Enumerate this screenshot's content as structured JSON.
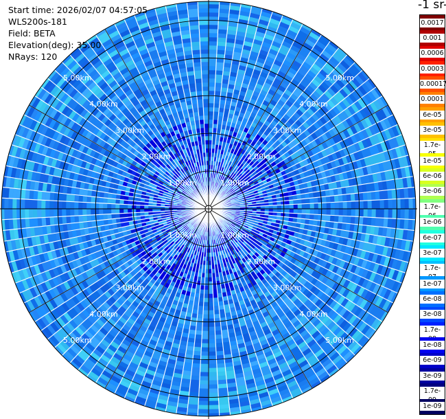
{
  "info": {
    "start_time": "Start time: 2026/02/07 04:57:05",
    "instrument": "WLS200s-181",
    "field": "Field: BETA",
    "elevation": "Elevation(deg): 35.00",
    "nrays": "NRays: 120"
  },
  "colorbar": {
    "title": "-1 sr-",
    "labels": [
      "0.0017",
      "0.001",
      "0.0006",
      "0.0003",
      "0.00017",
      "0.0001",
      "6e-05",
      "3e-05",
      "1.7e-05",
      "1e-05",
      "6e-06",
      "3e-06",
      "1.7e-06",
      "1e-06",
      "6e-07",
      "3e-07",
      "1.7e-07",
      "1e-07",
      "6e-08",
      "3e-08",
      "1.7e-08",
      "1e-08",
      "6e-09",
      "3e-09",
      "1.7e-09",
      "1e-09"
    ],
    "colors": [
      "#800000",
      "#b00000",
      "#e00000",
      "#ff2000",
      "#ff5000",
      "#ff8000",
      "#ffa000",
      "#ffc000",
      "#ffe000",
      "#f8ff00",
      "#d8ff20",
      "#b0ff50",
      "#80ff80",
      "#50ffb0",
      "#20ffe0",
      "#00e8ff",
      "#00c0ff",
      "#0098ff",
      "#0070ff",
      "#0048ff",
      "#0020ff",
      "#0000f0",
      "#0000c8",
      "#0000a0",
      "#000080",
      "#000060"
    ]
  },
  "chart_data": {
    "type": "heatmap",
    "projection": "polar PPI",
    "range_unit": "km",
    "range_max": 5.5,
    "range_rings": [
      1,
      2,
      3,
      4,
      5
    ],
    "range_labels": [
      "1.00km",
      "2.00km",
      "3.00km",
      "4.00km",
      "5.00km"
    ],
    "n_rays": 120,
    "colorscale": "log",
    "value_range": [
      1e-09,
      0.0017
    ],
    "dominant_value": "6e-08",
    "title": ""
  }
}
